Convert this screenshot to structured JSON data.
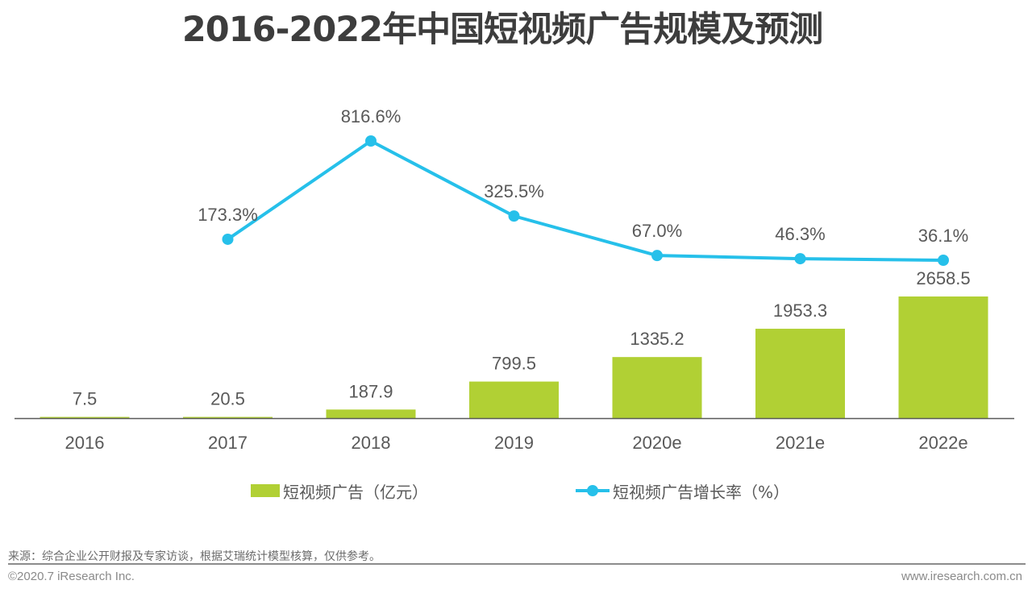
{
  "colors": {
    "bar": "#b1d034",
    "line": "#26c0ea",
    "axis": "#595959",
    "text": "#595959"
  },
  "chart_data": {
    "type": "bar",
    "title": "2016-2022年中国短视频广告规模及预测",
    "categories": [
      "2016",
      "2017",
      "2018",
      "2019",
      "2020e",
      "2021e",
      "2022e"
    ],
    "series": [
      {
        "name": "短视频广告（亿元）",
        "type": "bar",
        "values": [
          7.5,
          20.5,
          187.9,
          799.5,
          1335.2,
          1953.3,
          2658.5
        ],
        "labels": [
          "7.5",
          "20.5",
          "187.9",
          "799.5",
          "1335.2",
          "1953.3",
          "2658.5"
        ]
      },
      {
        "name": "短视频广告增长率（%）",
        "type": "line",
        "axis": "secondary",
        "values": [
          null,
          173.3,
          816.6,
          325.5,
          67.0,
          46.3,
          36.1
        ],
        "labels": [
          "",
          "173.3%",
          "816.6%",
          "325.5%",
          "67.0%",
          "46.3%",
          "36.1%"
        ]
      }
    ],
    "xlabel": "",
    "ylabel": "",
    "grid": false,
    "legend": "bottom"
  },
  "footer": {
    "source": "来源：综合企业公开财报及专家访谈，根据艾瑞统计模型核算，仅供参考。",
    "copyright": "©2020.7 iResearch Inc.",
    "website": "www.iresearch.com.cn"
  }
}
